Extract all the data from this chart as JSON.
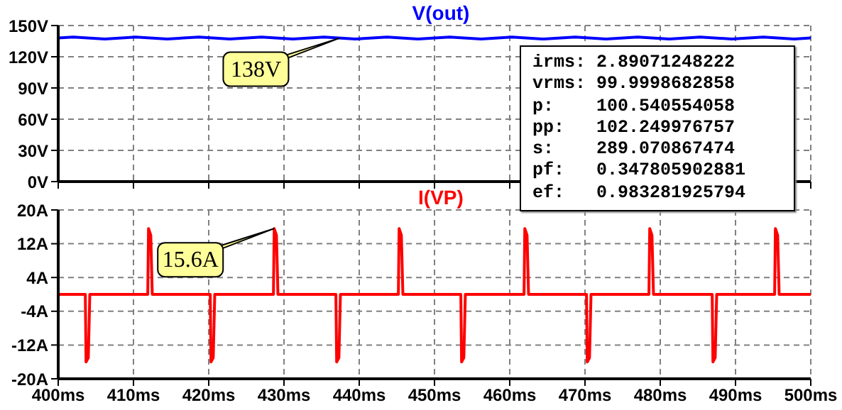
{
  "chart_data": [
    {
      "type": "line",
      "title": "V(out)",
      "tick_labels": "y",
      "grid": true,
      "xlim": [
        400,
        500
      ],
      "xticks": [
        400,
        410,
        420,
        430,
        440,
        450,
        460,
        470,
        480,
        490,
        500
      ],
      "ylim": [
        0,
        150
      ],
      "yticks": [
        {
          "value": 0,
          "label": "0V"
        },
        {
          "value": 30,
          "label": "30V"
        },
        {
          "value": 60,
          "label": "60V"
        },
        {
          "value": 90,
          "label": "90V"
        },
        {
          "value": 120,
          "label": "120V"
        },
        {
          "value": 150,
          "label": "150V"
        }
      ],
      "series": [
        {
          "color": "#0000ff",
          "x": [
            400,
            402,
            406.2,
            410.3,
            414.5,
            418.7,
            422.8,
            427,
            431.2,
            435.3,
            439.5,
            443.7,
            447.8,
            452,
            456.2,
            460.3,
            464.5,
            468.7,
            472.8,
            477,
            481.2,
            485.3,
            489.5,
            493.7,
            497.8,
            500
          ],
          "values": [
            138,
            139,
            137,
            139,
            137,
            139,
            137,
            139,
            137,
            139,
            137,
            139,
            137,
            139,
            137,
            139,
            137,
            139,
            137,
            139,
            137,
            139,
            137,
            139,
            137,
            138
          ]
        }
      ],
      "annotations": [
        {
          "text": "138V",
          "x": 437.4,
          "y": 138
        }
      ]
    },
    {
      "type": "line",
      "title": "I(VP)",
      "grid": true,
      "xlim": [
        400,
        500
      ],
      "xticks": [
        {
          "value": 400,
          "label": "400ms"
        },
        {
          "value": 410,
          "label": "410ms"
        },
        {
          "value": 420,
          "label": "420ms"
        },
        {
          "value": 430,
          "label": "430ms"
        },
        {
          "value": 440,
          "label": "440ms"
        },
        {
          "value": 450,
          "label": "450ms"
        },
        {
          "value": 460,
          "label": "460ms"
        },
        {
          "value": 470,
          "label": "470ms"
        },
        {
          "value": 480,
          "label": "480ms"
        },
        {
          "value": 490,
          "label": "490ms"
        },
        {
          "value": 500,
          "label": "500ms"
        }
      ],
      "ylim": [
        -20,
        20
      ],
      "yticks": [
        {
          "value": -20,
          "label": "-20A"
        },
        {
          "value": -12,
          "label": "-12A"
        },
        {
          "value": -4,
          "label": "-4A"
        },
        {
          "value": 4,
          "label": "4A"
        },
        {
          "value": 12,
          "label": "12A"
        },
        {
          "value": 20,
          "label": "20A"
        }
      ],
      "series": [
        {
          "color": "#ff0000",
          "x": [
            400,
            403.6,
            403.7,
            404.0,
            404.2,
            411.9,
            412.0,
            412.3,
            412.5,
            420.2,
            420.3,
            420.6,
            420.8,
            428.6,
            428.7,
            429.0,
            429.2,
            436.9,
            437.0,
            437.3,
            437.5,
            445.2,
            445.3,
            445.6,
            445.8,
            453.5,
            453.6,
            453.9,
            454.1,
            461.9,
            462.0,
            462.3,
            462.5,
            470.2,
            470.3,
            470.6,
            470.8,
            478.5,
            478.6,
            478.9,
            479.1,
            486.9,
            487.0,
            487.3,
            487.5,
            495.2,
            495.3,
            495.6,
            495.8,
            500
          ],
          "values": [
            0,
            0,
            -16,
            -15,
            0,
            0,
            15.6,
            14,
            0,
            0,
            -16,
            -15,
            0,
            0,
            15.6,
            14,
            0,
            0,
            -16,
            -15,
            0,
            0,
            15.6,
            14,
            0,
            0,
            -16,
            -15,
            0,
            0,
            15.6,
            14,
            0,
            0,
            -16,
            -15,
            0,
            0,
            15.6,
            14,
            0,
            0,
            -16,
            -15,
            0,
            0,
            15.6,
            14,
            0,
            0
          ]
        }
      ],
      "annotations": [
        {
          "text": "15.6A",
          "x": 428.7,
          "y": 15.6
        },
        "irms: 2.89071248222",
        "vrms: 99.9998682858",
        "p:    100.540554058",
        "pp:   102.249976757",
        "s:    289.070867474",
        "pf:   0.347805902881",
        "ef:   0.983281925794"
      ]
    }
  ]
}
